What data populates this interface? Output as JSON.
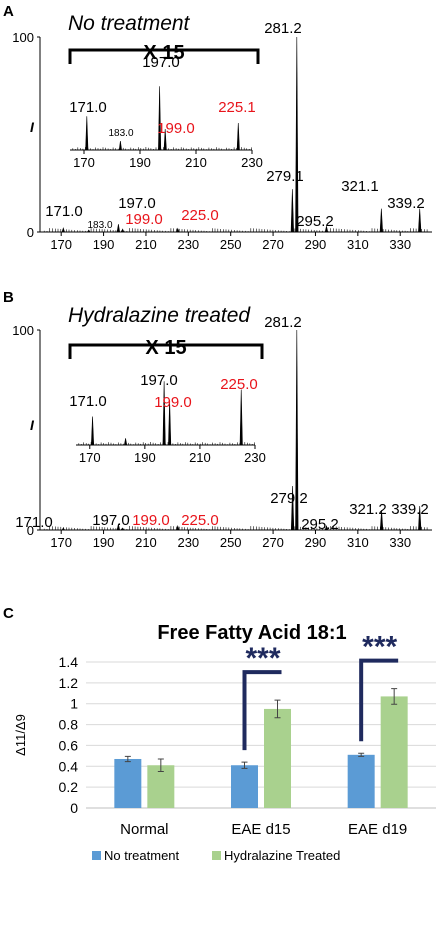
{
  "colors": {
    "peak": "#000000",
    "red_label": "#e8141b",
    "bar_blue": "#5b9bd5",
    "bar_green": "#a9d18e",
    "sig_bracket": "#1f2a5e",
    "grid": "#d9d9d9"
  },
  "chart_data": [
    {
      "panel": "A",
      "type": "line",
      "title": "No treatment",
      "ylabel": "I",
      "y_ticks": [
        "0",
        "100"
      ],
      "ylim": [
        0,
        100
      ],
      "xlim": [
        160,
        345
      ],
      "x_ticks": [
        "170",
        "190",
        "210",
        "230",
        "250",
        "270",
        "290",
        "310",
        "330"
      ],
      "peaks": [
        {
          "x": 171.0,
          "y": 2
        },
        {
          "x": 183.0,
          "y": 1
        },
        {
          "x": 197.0,
          "y": 4
        },
        {
          "x": 199.0,
          "y": 1.5
        },
        {
          "x": 225.0,
          "y": 1.8
        },
        {
          "x": 279.1,
          "y": 22
        },
        {
          "x": 281.2,
          "y": 100
        },
        {
          "x": 295.2,
          "y": 3
        },
        {
          "x": 321.1,
          "y": 12
        },
        {
          "x": 339.2,
          "y": 12
        }
      ],
      "peak_labels": [
        {
          "text": "171.0",
          "x": 171.0,
          "red": false
        },
        {
          "text": "183.0",
          "x": 183.0,
          "red": false
        },
        {
          "text": "197.0",
          "x": 197.0,
          "red": false
        },
        {
          "text": "199.0",
          "x": 199.0,
          "red": true
        },
        {
          "text": "225.0",
          "x": 225.0,
          "red": true
        },
        {
          "text": "279.1",
          "x": 279.1,
          "red": false
        },
        {
          "text": "281.2",
          "x": 281.2,
          "red": false
        },
        {
          "text": "295.2",
          "x": 295.2,
          "red": false
        },
        {
          "text": "321.1",
          "x": 321.1,
          "red": false
        },
        {
          "text": "339.2",
          "x": 339.2,
          "red": false
        }
      ],
      "inset": {
        "label": "X 15",
        "xlim": [
          165,
          230
        ],
        "x_ticks": [
          "170",
          "190",
          "210",
          "230"
        ],
        "peaks": [
          {
            "x": 171.0,
            "y": 45
          },
          {
            "x": 183.0,
            "y": 12
          },
          {
            "x": 197.0,
            "y": 85
          },
          {
            "x": 199.0,
            "y": 28
          },
          {
            "x": 225.1,
            "y": 36
          }
        ],
        "peak_labels": [
          {
            "text": "171.0",
            "x": 171.0,
            "red": false
          },
          {
            "text": "183.0",
            "x": 183.0,
            "red": false
          },
          {
            "text": "197.0",
            "x": 197.0,
            "red": false
          },
          {
            "text": "199.0",
            "x": 199.0,
            "red": true
          },
          {
            "text": "225.1",
            "x": 225.1,
            "red": true
          }
        ]
      }
    },
    {
      "panel": "B",
      "type": "line",
      "title": "Hydralazine treated",
      "ylabel": "I",
      "y_ticks": [
        "0",
        "100"
      ],
      "ylim": [
        0,
        100
      ],
      "xlim": [
        160,
        345
      ],
      "x_ticks": [
        "170",
        "190",
        "210",
        "230",
        "250",
        "270",
        "290",
        "310",
        "330"
      ],
      "peaks": [
        {
          "x": 171.0,
          "y": 1
        },
        {
          "x": 197.0,
          "y": 3
        },
        {
          "x": 199.0,
          "y": 1
        },
        {
          "x": 225.0,
          "y": 2
        },
        {
          "x": 279.2,
          "y": 22
        },
        {
          "x": 281.2,
          "y": 100
        },
        {
          "x": 295.2,
          "y": 2
        },
        {
          "x": 321.2,
          "y": 10
        },
        {
          "x": 339.2,
          "y": 12
        }
      ],
      "peak_labels": [
        {
          "text": "171.0",
          "x": 171.0,
          "red": false
        },
        {
          "text": "197.0",
          "x": 197.0,
          "red": false
        },
        {
          "text": "199.0",
          "x": 199.0,
          "red": true
        },
        {
          "text": "225.0",
          "x": 225.0,
          "red": true
        },
        {
          "text": "279.2",
          "x": 279.2,
          "red": false
        },
        {
          "text": "281.2",
          "x": 281.2,
          "red": false
        },
        {
          "text": "295.2",
          "x": 295.2,
          "red": false
        },
        {
          "text": "321.2",
          "x": 321.2,
          "red": false
        },
        {
          "text": "339.2",
          "x": 339.2,
          "red": false
        }
      ],
      "inset": {
        "label": "X 15",
        "xlim": [
          165,
          230
        ],
        "x_ticks": [
          "170",
          "190",
          "210",
          "230"
        ],
        "peaks": [
          {
            "x": 171.0,
            "y": 38
          },
          {
            "x": 183.0,
            "y": 9
          },
          {
            "x": 197.0,
            "y": 85
          },
          {
            "x": 199.0,
            "y": 60
          },
          {
            "x": 225.0,
            "y": 74
          }
        ],
        "peak_labels": [
          {
            "text": "171.0",
            "x": 171.0,
            "red": false
          },
          {
            "text": "197.0",
            "x": 197.0,
            "red": false
          },
          {
            "text": "199.0",
            "x": 199.0,
            "red": true
          },
          {
            "text": "225.0",
            "x": 225.0,
            "red": true
          }
        ]
      }
    },
    {
      "panel": "C",
      "type": "bar",
      "title": "Free Fatty Acid 18:1",
      "ylabel": "Δ11/Δ9",
      "ylim": [
        0,
        1.4
      ],
      "y_ticks": [
        "0",
        "0.2",
        "0.4",
        "0.6",
        "0.8",
        "1",
        "1.2",
        "1.4"
      ],
      "grid": true,
      "categories": [
        "Normal",
        "EAE d15",
        "EAE d19"
      ],
      "series": [
        {
          "name": "No treatment",
          "values": [
            0.47,
            0.41,
            0.51
          ],
          "errors": [
            0.025,
            0.03,
            0.015
          ]
        },
        {
          "name": "Hydralazine Treated",
          "values": [
            0.41,
            0.95,
            1.07
          ],
          "errors": [
            0.06,
            0.085,
            0.075
          ]
        }
      ],
      "significance": [
        {
          "category": "EAE d15",
          "label": "***"
        },
        {
          "category": "EAE d19",
          "label": "***"
        }
      ],
      "legend_position": "bottom"
    }
  ]
}
